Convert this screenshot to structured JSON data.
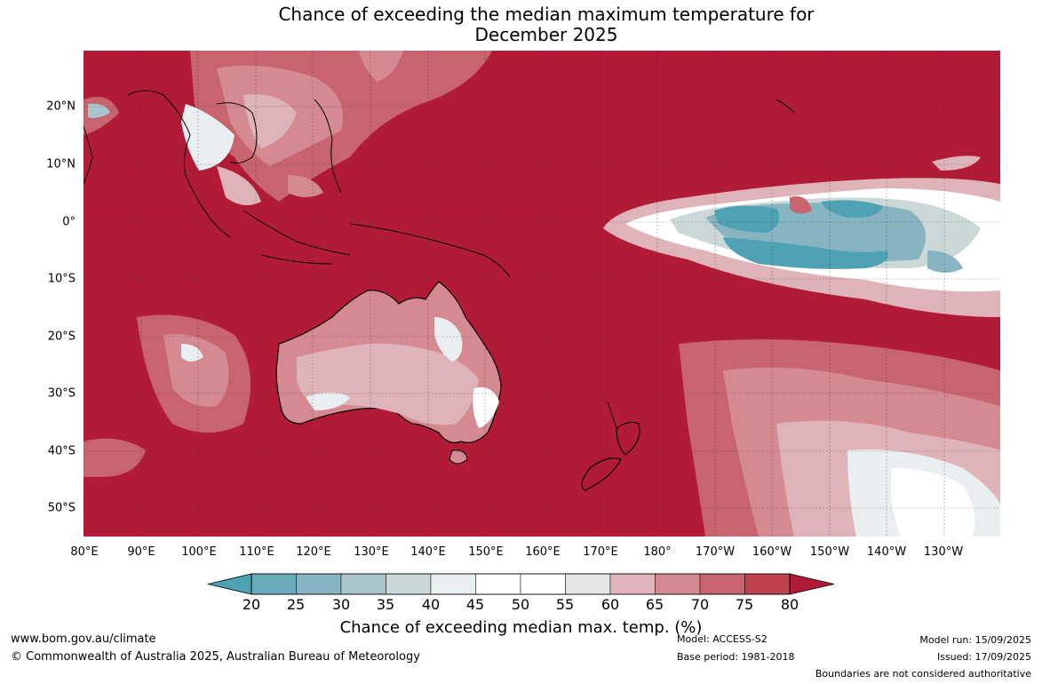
{
  "title": {
    "line1": "Chance of exceeding the median maximum temperature for",
    "line2": "December 2025"
  },
  "map": {
    "lat_labels": [
      "20°N",
      "10°N",
      "0°",
      "10°S",
      "20°S",
      "30°S",
      "40°S",
      "50°S"
    ],
    "lon_labels": [
      "80°E",
      "90°E",
      "100°E",
      "110°E",
      "120°E",
      "130°E",
      "140°E",
      "150°E",
      "160°E",
      "170°E",
      "180°",
      "170°W",
      "160°W",
      "150°W",
      "140°W",
      "130°W"
    ],
    "colors": {
      "high": "#b21b37",
      "low": "#4aa0b4",
      "land_outline": "#000000"
    }
  },
  "legend": {
    "ticks": [
      "20",
      "25",
      "30",
      "35",
      "40",
      "45",
      "50",
      "55",
      "60",
      "65",
      "70",
      "75",
      "80"
    ],
    "colors": [
      "#4ea2b4",
      "#69aabb",
      "#86b5c1",
      "#a9c5cb",
      "#ccd7d8",
      "#e9eef0",
      "#ffffff",
      "#ffffff",
      "#e8e5e6",
      "#deb4b9",
      "#d58a92",
      "#c8646f",
      "#bf4250",
      "#b21b37"
    ],
    "label": "Chance of exceeding median max. temp. (%)"
  },
  "footer": {
    "website": "www.bom.gov.au/climate",
    "copyright": "© Commonwealth of Australia 2025, Australian Bureau of Meteorology",
    "model": "Model: ACCESS-S2",
    "base_period": "Base period: 1981-2018",
    "model_run": "Model run: 15/09/2025",
    "issued": "Issued: 17/09/2025",
    "disclaimer": "Boundaries are not considered authoritative"
  }
}
